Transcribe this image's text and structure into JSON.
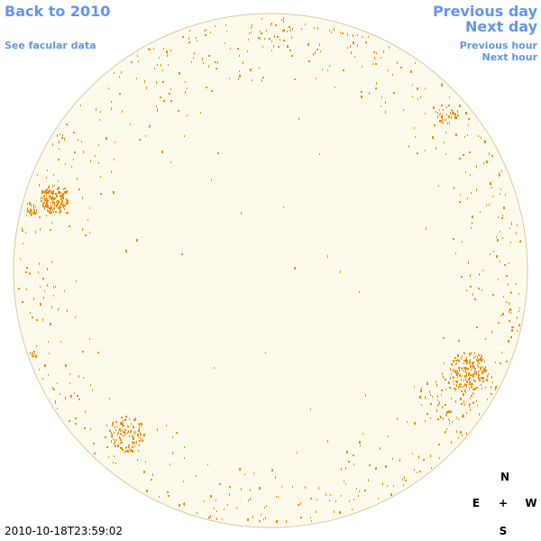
{
  "nav": {
    "back_label": "Back to 2010",
    "facular_label": "See facular data",
    "prev_day_label": "Previous day",
    "next_day_label": "Next day",
    "prev_hour_label": "Previous hour",
    "next_hour_label": "Next hour"
  },
  "timestamp": "2010-10-18T23:59:02",
  "compass": {
    "north": "N",
    "east": "E",
    "center": "+",
    "west": "W",
    "south": "S"
  },
  "colors": {
    "disk_fill": "#fefaeb",
    "disk_stroke": "#d8c9a8",
    "feature": "#f28c00",
    "link": "#6495ed"
  }
}
